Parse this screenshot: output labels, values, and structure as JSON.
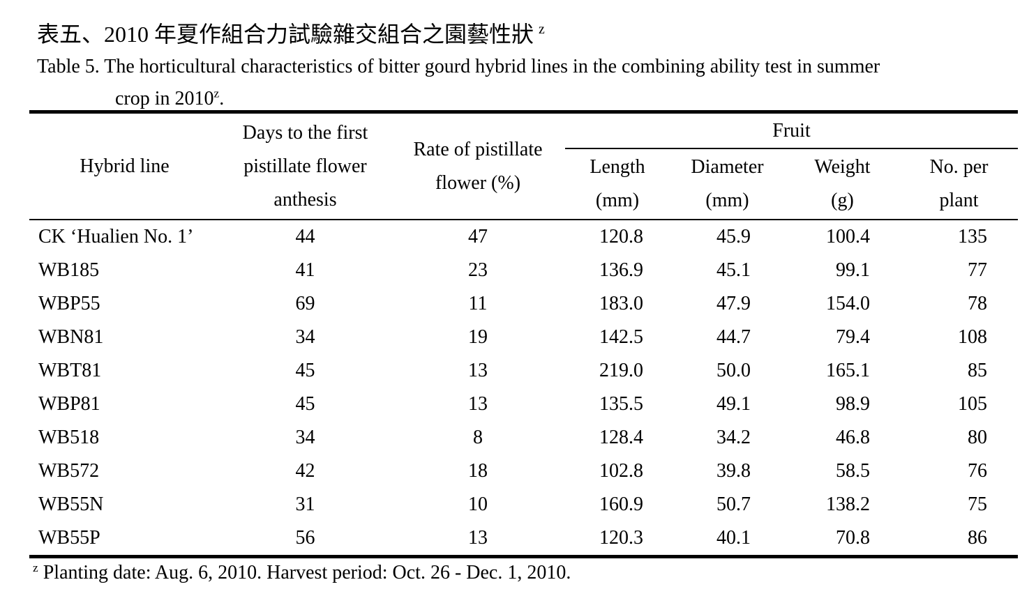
{
  "caption": {
    "zh": "表五、2010 年夏作組合力試驗雜交組合之園藝性狀",
    "zh_superscript": "z",
    "en_line1": "Table 5. The horticultural characteristics of bitter gourd hybrid lines in the combining ability test in summer",
    "en_line2": "crop in 2010",
    "en_line2_superscript": "z",
    "en_line2_suffix": "."
  },
  "table": {
    "headers": {
      "hybrid_line": "Hybrid line",
      "days_lines": [
        "Days to the first",
        "pistillate flower",
        "anthesis"
      ],
      "rate_lines": [
        "Rate of pistillate",
        "flower (%)"
      ],
      "fruit_group": "Fruit",
      "fruit_cols": [
        {
          "line1": "Length",
          "line2": "(mm)"
        },
        {
          "line1": "Diameter",
          "line2": "(mm)"
        },
        {
          "line1": "Weight",
          "line2": "(g)"
        },
        {
          "line1": "No. per",
          "line2": "plant"
        }
      ]
    },
    "rows": [
      {
        "hybrid_line": "CK ‘Hualien No. 1’",
        "days": "44",
        "rate": "47",
        "length": "120.8",
        "diameter": "45.9",
        "weight": "100.4",
        "no_per_plant": "135"
      },
      {
        "hybrid_line": "WB185",
        "days": "41",
        "rate": "23",
        "length": "136.9",
        "diameter": "45.1",
        "weight": "99.1",
        "no_per_plant": "77"
      },
      {
        "hybrid_line": "WBP55",
        "days": "69",
        "rate": "11",
        "length": "183.0",
        "diameter": "47.9",
        "weight": "154.0",
        "no_per_plant": "78"
      },
      {
        "hybrid_line": "WBN81",
        "days": "34",
        "rate": "19",
        "length": "142.5",
        "diameter": "44.7",
        "weight": "79.4",
        "no_per_plant": "108"
      },
      {
        "hybrid_line": "WBT81",
        "days": "45",
        "rate": "13",
        "length": "219.0",
        "diameter": "50.0",
        "weight": "165.1",
        "no_per_plant": "85"
      },
      {
        "hybrid_line": "WBP81",
        "days": "45",
        "rate": "13",
        "length": "135.5",
        "diameter": "49.1",
        "weight": "98.9",
        "no_per_plant": "105"
      },
      {
        "hybrid_line": "WB518",
        "days": "34",
        "rate": "8",
        "length": "128.4",
        "diameter": "34.2",
        "weight": "46.8",
        "no_per_plant": "80"
      },
      {
        "hybrid_line": "WB572",
        "days": "42",
        "rate": "18",
        "length": "102.8",
        "diameter": "39.8",
        "weight": "58.5",
        "no_per_plant": "76"
      },
      {
        "hybrid_line": "WB55N",
        "days": "31",
        "rate": "10",
        "length": "160.9",
        "diameter": "50.7",
        "weight": "138.2",
        "no_per_plant": "75"
      },
      {
        "hybrid_line": "WB55P",
        "days": "56",
        "rate": "13",
        "length": "120.3",
        "diameter": "40.1",
        "weight": "70.8",
        "no_per_plant": "86"
      }
    ]
  },
  "footnote": {
    "superscript": "z",
    "text": "Planting date: Aug. 6, 2010. Harvest period: Oct. 26 - Dec. 1, 2010."
  },
  "colors": {
    "text": "#000000",
    "background": "#ffffff",
    "border": "#000000"
  }
}
